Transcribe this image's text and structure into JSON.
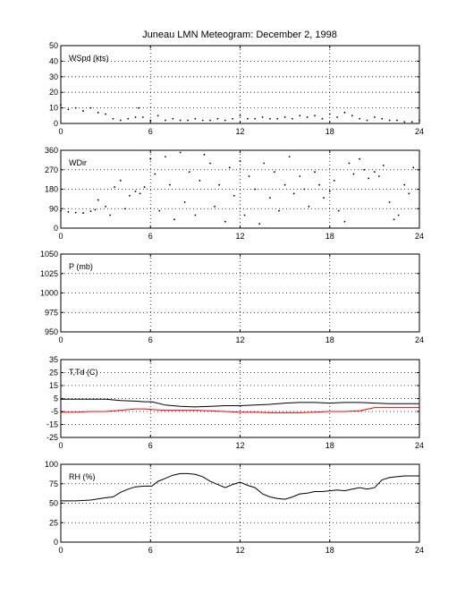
{
  "title": "Juneau LMN Meteogram:  December  2, 1998",
  "colors": {
    "axes": "#000000",
    "line": "#000000",
    "dewpoint": "#ff0000",
    "grid": "#000000",
    "background": "#ffffff"
  },
  "chart_data": [
    {
      "type": "scatter",
      "label": "WSpd (kts)",
      "xlim": [
        0,
        24
      ],
      "ylim": [
        0,
        50
      ],
      "xticks": [
        0,
        6,
        12,
        18,
        24
      ],
      "yticks": [
        0,
        10,
        20,
        30,
        40,
        50
      ],
      "grid": "dotted",
      "series": [
        {
          "style": "dots",
          "x": [
            0,
            0.5,
            1,
            1.5,
            2,
            2.5,
            3,
            3.5,
            4,
            4.5,
            5,
            5.2,
            5.5,
            6,
            6.5,
            7,
            7.5,
            8,
            8.5,
            9,
            9.5,
            10,
            10.5,
            11,
            11.5,
            12,
            12.5,
            13,
            13.5,
            14,
            14.5,
            15,
            15.5,
            16,
            16.5,
            17,
            17.5,
            18,
            18.5,
            19,
            19.5,
            20,
            20.5,
            21,
            21.5,
            22,
            22.5,
            23,
            23.5,
            24
          ],
          "y": [
            12,
            9,
            10,
            8,
            10,
            7,
            6,
            3,
            2,
            3,
            4,
            10,
            4,
            2,
            5,
            2,
            3,
            2,
            2,
            3,
            2,
            2,
            3,
            2,
            3,
            5,
            3,
            3,
            4,
            3,
            3,
            4,
            3,
            5,
            4,
            5,
            3,
            6,
            4,
            7,
            5,
            3,
            2,
            4,
            3,
            2,
            2,
            1,
            1,
            2
          ]
        }
      ]
    },
    {
      "type": "scatter",
      "label": "WDir",
      "xlim": [
        0,
        24
      ],
      "ylim": [
        0,
        360
      ],
      "xticks": [
        0,
        6,
        12,
        18,
        24
      ],
      "yticks": [
        0,
        90,
        180,
        270,
        360
      ],
      "grid": "dotted",
      "series": [
        {
          "style": "dots",
          "x": [
            0,
            0.5,
            1,
            1.5,
            2,
            2.3,
            2.5,
            3,
            3.3,
            3.6,
            4,
            4.3,
            4.6,
            5,
            5.3,
            5.6,
            6,
            6.3,
            6.6,
            7,
            7.3,
            7.6,
            8,
            8.3,
            8.6,
            9,
            9.3,
            9.6,
            10,
            10.3,
            10.6,
            11,
            11.3,
            11.6,
            12,
            12.3,
            12.6,
            13,
            13.3,
            13.6,
            14,
            14.3,
            14.6,
            15,
            15.3,
            15.6,
            16,
            16.3,
            16.6,
            17,
            17.3,
            17.6,
            18,
            18.3,
            18.6,
            19,
            19.3,
            19.6,
            20,
            20.3,
            20.6,
            21,
            21.3,
            21.6,
            22,
            22.3,
            22.6,
            23,
            23.3,
            23.6,
            24
          ],
          "y": [
            80,
            75,
            72,
            70,
            78,
            85,
            130,
            100,
            60,
            190,
            220,
            90,
            150,
            170,
            160,
            190,
            320,
            250,
            80,
            330,
            200,
            40,
            350,
            120,
            260,
            60,
            220,
            340,
            300,
            100,
            200,
            30,
            280,
            150,
            310,
            60,
            240,
            180,
            20,
            300,
            140,
            260,
            80,
            200,
            330,
            160,
            240,
            180,
            100,
            260,
            200,
            140,
            170,
            220,
            80,
            30,
            300,
            250,
            320,
            270,
            230,
            260,
            240,
            290,
            120,
            40,
            60,
            200,
            160,
            280,
            270
          ]
        }
      ]
    },
    {
      "type": "line",
      "label": "P (mb)",
      "xlim": [
        0,
        24
      ],
      "ylim": [
        950,
        1050
      ],
      "xticks": [
        0,
        6,
        12,
        18,
        24
      ],
      "yticks": [
        950,
        975,
        1000,
        1025,
        1050
      ],
      "grid": "dotted",
      "series": []
    },
    {
      "type": "line",
      "label": "T,Td (C)",
      "xlim": [
        0,
        24
      ],
      "ylim": [
        -25,
        35
      ],
      "xticks": [
        0,
        6,
        12,
        18,
        24
      ],
      "yticks": [
        -25,
        -15,
        -5,
        5,
        15,
        25,
        35
      ],
      "grid": "dotted",
      "series": [
        {
          "color": "#000000",
          "x": [
            0,
            1,
            2,
            3,
            4,
            5,
            5.6,
            6.1,
            7,
            8,
            9,
            10,
            11,
            12,
            13,
            14,
            15,
            16,
            17,
            18,
            19,
            20,
            21,
            22,
            23,
            24
          ],
          "y": [
            4.5,
            4.5,
            4.5,
            4.5,
            3.5,
            3,
            2.5,
            2.5,
            0,
            -1,
            -1.5,
            -1,
            -0.5,
            -0.5,
            0,
            0.5,
            1.5,
            2,
            2,
            1.5,
            2,
            2,
            1.5,
            1,
            1,
            1
          ]
        },
        {
          "color": "#ff0000",
          "x": [
            0,
            1,
            2,
            3,
            4,
            5,
            5.6,
            6.1,
            7,
            8,
            9,
            10,
            11,
            12,
            13,
            14,
            15,
            16,
            17,
            18,
            19,
            20,
            21,
            22,
            23,
            24
          ],
          "y": [
            -5.5,
            -5.5,
            -5,
            -5,
            -4,
            -3,
            -3,
            -3.5,
            -4,
            -4,
            -4,
            -4.5,
            -5,
            -5.5,
            -5.5,
            -6,
            -6,
            -6,
            -5.5,
            -5,
            -5,
            -4.5,
            -2,
            -2,
            -2,
            -2
          ]
        }
      ]
    },
    {
      "type": "line",
      "label": "RH (%)",
      "xlim": [
        0,
        24
      ],
      "ylim": [
        0,
        100
      ],
      "xticks": [
        0,
        6,
        12,
        18,
        24
      ],
      "yticks": [
        0,
        25,
        50,
        75,
        100
      ],
      "grid": "dotted",
      "series": [
        {
          "color": "#000000",
          "x": [
            0,
            1,
            2,
            3,
            3.5,
            4,
            4.5,
            5,
            5.6,
            6.1,
            6.5,
            7,
            7.5,
            8,
            8.5,
            9,
            9.5,
            10,
            10.5,
            11,
            11.5,
            12,
            12.5,
            13,
            13.5,
            14,
            14.5,
            15,
            15.5,
            16,
            16.5,
            17,
            17.5,
            18,
            18.5,
            19,
            19.5,
            20,
            20.5,
            21,
            21.5,
            22,
            22.5,
            23,
            23.5,
            24
          ],
          "y": [
            53,
            53,
            54,
            57,
            58,
            64,
            68,
            71,
            72,
            72,
            78,
            82,
            86,
            88,
            88,
            87,
            84,
            78,
            74,
            70,
            74,
            77,
            73,
            70,
            62,
            58,
            56,
            55,
            58,
            62,
            63,
            65,
            65,
            66,
            67,
            66,
            68,
            70,
            68,
            70,
            80,
            83,
            84,
            85,
            85,
            85
          ]
        }
      ]
    }
  ]
}
